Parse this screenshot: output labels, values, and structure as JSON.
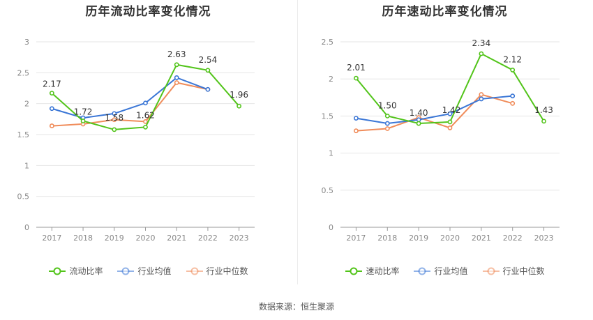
{
  "chart_data": [
    {
      "type": "line",
      "title": "历年流动比率变化情况",
      "categories": [
        "2017",
        "2018",
        "2019",
        "2020",
        "2021",
        "2022",
        "2023"
      ],
      "yticks": [
        "0",
        "0.5",
        "1",
        "1.5",
        "2",
        "2.5",
        "3"
      ],
      "ylim": [
        0,
        3
      ],
      "series": [
        {
          "name": "流动比率",
          "color": "#52c41a",
          "values": [
            2.17,
            1.72,
            1.58,
            1.62,
            2.63,
            2.54,
            1.96
          ],
          "labels": [
            "2.17",
            "1.72",
            "1.58",
            "1.62",
            "2.63",
            "2.54",
            "1.96"
          ]
        },
        {
          "name": "行业均值",
          "color": "#3a76d6",
          "values": [
            1.92,
            1.77,
            1.84,
            2.01,
            2.42,
            2.23,
            null
          ]
        },
        {
          "name": "行业中位数",
          "color": "#f08c5a",
          "values": [
            1.64,
            1.67,
            1.74,
            1.71,
            2.34,
            2.23,
            null
          ]
        }
      ]
    },
    {
      "type": "line",
      "title": "历年速动比率变化情况",
      "categories": [
        "2017",
        "2018",
        "2019",
        "2020",
        "2021",
        "2022",
        "2023"
      ],
      "yticks": [
        "0",
        "0.5",
        "1",
        "1.5",
        "2",
        "2.5"
      ],
      "ylim": [
        0,
        2.5
      ],
      "series": [
        {
          "name": "速动比率",
          "color": "#52c41a",
          "values": [
            2.01,
            1.5,
            1.4,
            1.42,
            2.34,
            2.12,
            1.43
          ],
          "labels": [
            "2.01",
            "1.50",
            "1.40",
            "1.42",
            "2.34",
            "2.12",
            "1.43"
          ]
        },
        {
          "name": "行业均值",
          "color": "#3a76d6",
          "values": [
            1.47,
            1.4,
            1.45,
            1.53,
            1.73,
            1.77,
            null
          ]
        },
        {
          "name": "行业中位数",
          "color": "#f08c5a",
          "values": [
            1.3,
            1.33,
            1.48,
            1.34,
            1.79,
            1.67,
            null
          ]
        }
      ]
    }
  ],
  "footer": {
    "source": "数据来源：恒生聚源"
  }
}
